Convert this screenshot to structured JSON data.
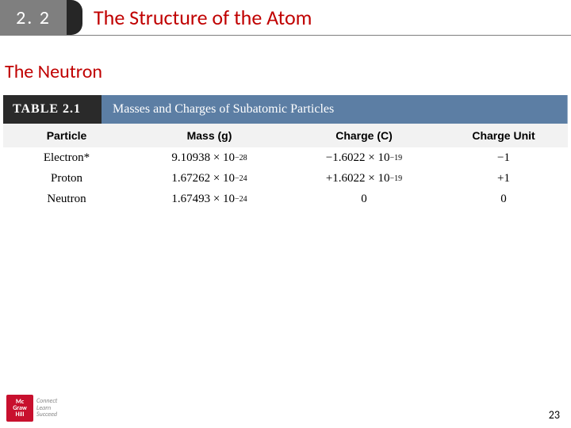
{
  "header": {
    "section_number": "2. 2",
    "chapter_title": "The Structure of the Atom"
  },
  "section_heading": "The Neutron",
  "table": {
    "label": "TABLE 2.1",
    "title": "Masses and Charges of Subatomic Particles",
    "columns": [
      "Particle",
      "Mass (g)",
      "Charge (C)",
      "Charge Unit"
    ],
    "rows": [
      {
        "particle": "Electron*",
        "mass_coeff": "9.10938",
        "mass_exp": "−28",
        "charge_sign": "−",
        "charge_coeff": "1.6022",
        "charge_exp": "−19",
        "unit": "−1"
      },
      {
        "particle": "Proton",
        "mass_coeff": "1.67262",
        "mass_exp": "−24",
        "charge_sign": "+",
        "charge_coeff": "1.6022",
        "charge_exp": "−19",
        "unit": "+1"
      },
      {
        "particle": "Neutron",
        "mass_coeff": "1.67493",
        "mass_exp": "−24",
        "charge_sign": "",
        "charge_coeff": "0",
        "charge_exp": "",
        "unit": "0"
      }
    ],
    "colors": {
      "label_bg": "#2a2a2a",
      "title_bg": "#5c7ea4",
      "header_bg": "#f2f2f2"
    }
  },
  "footer": {
    "publisher_lines": [
      "Mc",
      "Graw",
      "Hill"
    ],
    "tagline_lines": [
      "Connect",
      "Learn",
      "Succeed"
    ]
  },
  "page_number": "23",
  "accent_color": "#c00000"
}
